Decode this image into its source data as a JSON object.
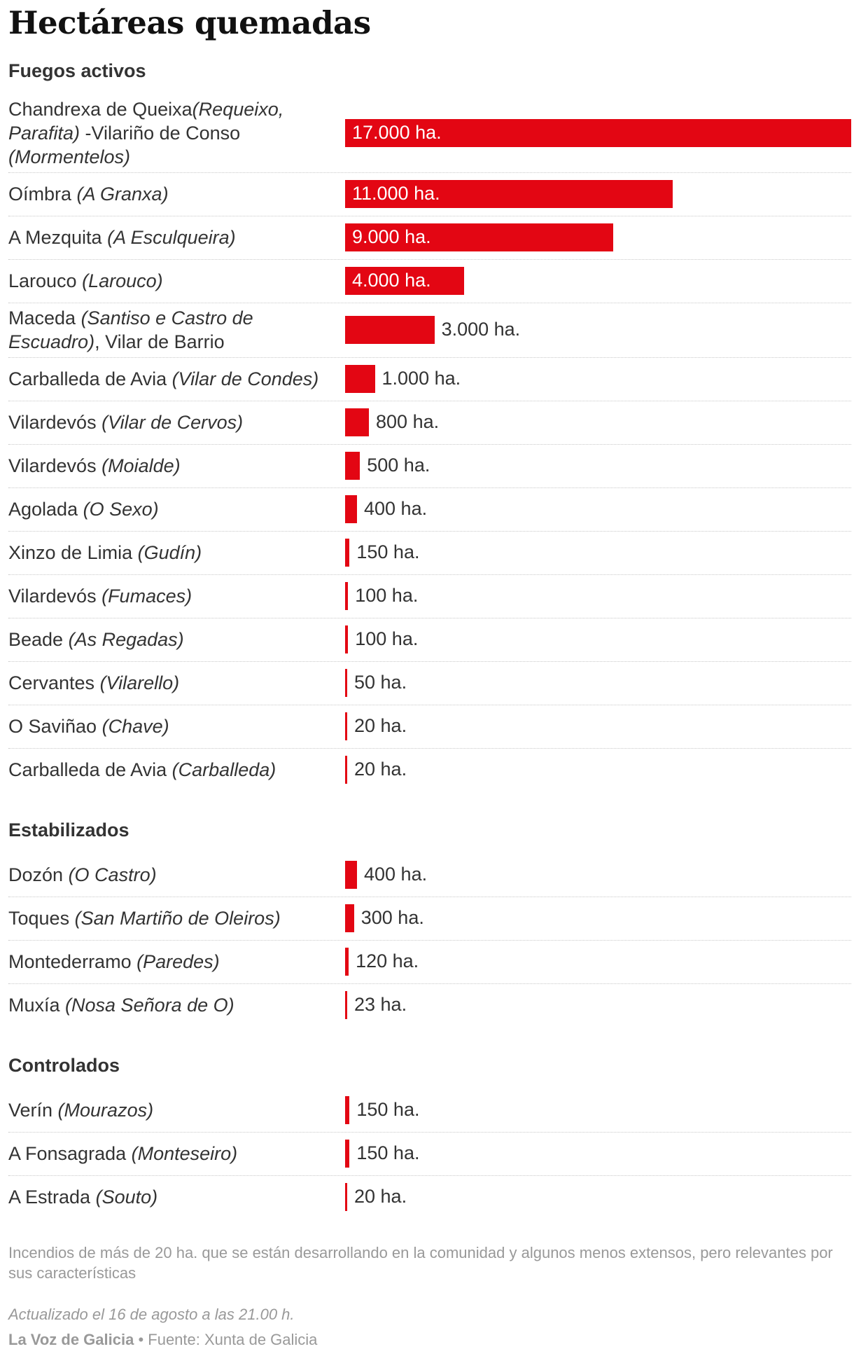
{
  "chart_data": {
    "type": "bar",
    "title": "Hectáreas quemadas",
    "unit": "ha.",
    "xlim": [
      0,
      17000
    ],
    "colors": {
      "bar": "#e30613",
      "text": "#333333",
      "muted": "#999999"
    },
    "groups": [
      {
        "name": "Fuegos activos",
        "items": [
          {
            "parts": [
              [
                "Chandrexa de Queixa",
                false
              ],
              [
                "(Requeixo, Parafita)",
                true
              ],
              [
                " -Vilariño de Conso ",
                false
              ],
              [
                "(Mormentelos)",
                true
              ]
            ],
            "value": 17000,
            "label": "17.000 ha."
          },
          {
            "parts": [
              [
                "Oímbra ",
                false
              ],
              [
                "(A Granxa)",
                true
              ]
            ],
            "value": 11000,
            "label": "11.000 ha."
          },
          {
            "parts": [
              [
                "A Mezquita ",
                false
              ],
              [
                "(A Esculqueira)",
                true
              ]
            ],
            "value": 9000,
            "label": "9.000 ha."
          },
          {
            "parts": [
              [
                "Larouco ",
                false
              ],
              [
                "(Larouco)",
                true
              ]
            ],
            "value": 4000,
            "label": "4.000 ha."
          },
          {
            "parts": [
              [
                "Maceda ",
                false
              ],
              [
                "(Santiso e Castro de Escuadro)",
                true
              ],
              [
                ", Vilar de Barrio",
                false
              ]
            ],
            "value": 3000,
            "label": "3.000 ha."
          },
          {
            "parts": [
              [
                "Carballeda de Avia ",
                false
              ],
              [
                "(Vilar de Condes)",
                true
              ]
            ],
            "value": 1000,
            "label": "1.000 ha."
          },
          {
            "parts": [
              [
                "Vilardevós ",
                false
              ],
              [
                "(Vilar de Cervos)",
                true
              ]
            ],
            "value": 800,
            "label": "800 ha."
          },
          {
            "parts": [
              [
                "Vilardevós ",
                false
              ],
              [
                "(Moialde)",
                true
              ]
            ],
            "value": 500,
            "label": "500 ha."
          },
          {
            "parts": [
              [
                "Agolada ",
                false
              ],
              [
                "(O Sexo)",
                true
              ]
            ],
            "value": 400,
            "label": "400 ha."
          },
          {
            "parts": [
              [
                "Xinzo de Limia ",
                false
              ],
              [
                "(Gudín)",
                true
              ]
            ],
            "value": 150,
            "label": "150 ha."
          },
          {
            "parts": [
              [
                "Vilardevós ",
                false
              ],
              [
                "(Fumaces)",
                true
              ]
            ],
            "value": 100,
            "label": "100 ha."
          },
          {
            "parts": [
              [
                "Beade ",
                false
              ],
              [
                "(As Regadas)",
                true
              ]
            ],
            "value": 100,
            "label": "100 ha."
          },
          {
            "parts": [
              [
                "Cervantes ",
                false
              ],
              [
                "(Vilarello)",
                true
              ]
            ],
            "value": 50,
            "label": "50 ha."
          },
          {
            "parts": [
              [
                "O Saviñao ",
                false
              ],
              [
                "(Chave)",
                true
              ]
            ],
            "value": 20,
            "label": "20 ha."
          },
          {
            "parts": [
              [
                "Carballeda de Avia ",
                false
              ],
              [
                "(Carballeda)",
                true
              ]
            ],
            "value": 20,
            "label": "20 ha."
          }
        ]
      },
      {
        "name": "Estabilizados",
        "items": [
          {
            "parts": [
              [
                "Dozón ",
                false
              ],
              [
                "(O Castro)",
                true
              ]
            ],
            "value": 400,
            "label": "400 ha."
          },
          {
            "parts": [
              [
                "Toques ",
                false
              ],
              [
                "(San Martiño de Oleiros)",
                true
              ]
            ],
            "value": 300,
            "label": "300 ha."
          },
          {
            "parts": [
              [
                "Montederramo ",
                false
              ],
              [
                "(Paredes)",
                true
              ]
            ],
            "value": 120,
            "label": "120 ha."
          },
          {
            "parts": [
              [
                "Muxía ",
                false
              ],
              [
                "(Nosa Señora de O)",
                true
              ]
            ],
            "value": 23,
            "label": "23 ha."
          }
        ]
      },
      {
        "name": "Controlados",
        "items": [
          {
            "parts": [
              [
                "Verín ",
                false
              ],
              [
                "(Mourazos)",
                true
              ]
            ],
            "value": 150,
            "label": "150 ha."
          },
          {
            "parts": [
              [
                "A Fonsagrada ",
                false
              ],
              [
                "(Monteseiro)",
                true
              ]
            ],
            "value": 150,
            "label": "150 ha."
          },
          {
            "parts": [
              [
                "A Estrada ",
                false
              ],
              [
                "(Souto)",
                true
              ]
            ],
            "value": 20,
            "label": "20 ha."
          }
        ]
      }
    ]
  },
  "footer": {
    "note": "Incendios de más de 20 ha. que se están desarrollando en la comunidad y algunos menos extensos, pero relevantes por sus características",
    "updated": "Actualizado el 16 de agosto a las 21.00 h.",
    "brand": "La Voz de Galicia",
    "bullet": " • ",
    "source": "Fuente: Xunta de Galicia"
  }
}
